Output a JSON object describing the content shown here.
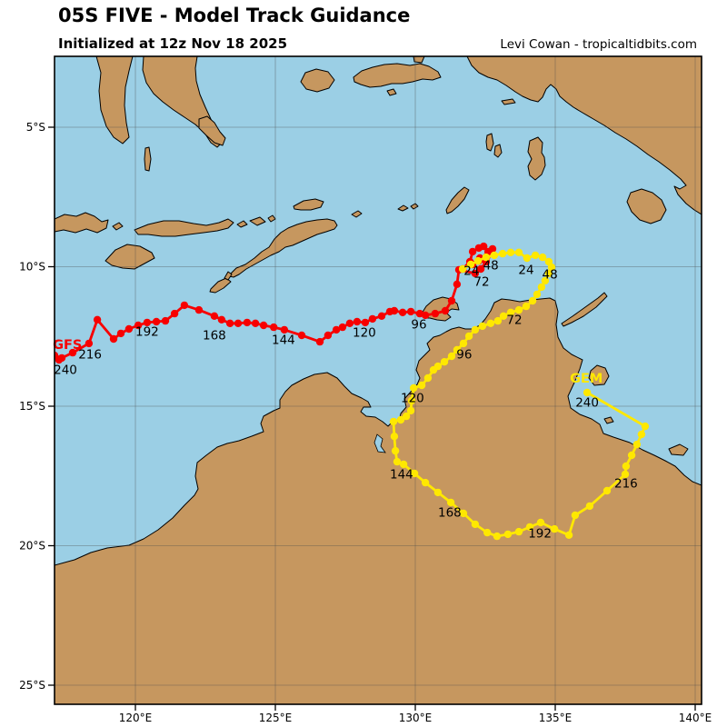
{
  "header": {
    "title": "05S FIVE - Model Track Guidance",
    "subtitle": "Initialized at 12z Nov 18 2025",
    "credit": "Levi Cowan - tropicaltidbits.com"
  },
  "map": {
    "colors": {
      "ocean": "#9BCFE5",
      "land": "#C6975F",
      "grid": "#4a4a4a",
      "frame": "#000000"
    },
    "lat_ticks": [
      {
        "label": "5°S",
        "lat": -5
      },
      {
        "label": "10°S",
        "lat": -10
      },
      {
        "label": "15°S",
        "lat": -15
      },
      {
        "label": "20°S",
        "lat": -20
      },
      {
        "label": "25°S",
        "lat": -25
      }
    ],
    "lon_ticks": [
      {
        "label": "120°E",
        "lon": 120
      },
      {
        "label": "125°E",
        "lon": 125
      },
      {
        "label": "130°E",
        "lon": 130
      },
      {
        "label": "135°E",
        "lon": 135
      },
      {
        "label": "140°E",
        "lon": 140
      }
    ]
  },
  "chart_data": {
    "type": "line",
    "title": "05S FIVE - Model Track Guidance",
    "subtitle": "Initialized at 12z Nov 18 2025",
    "x_axis": {
      "label_format": "degrees east",
      "range": [
        117.1,
        140.3
      ]
    },
    "y_axis": {
      "label_format": "degrees south",
      "range": [
        -25.7,
        -2.5
      ]
    },
    "projection": {
      "x0": 149,
      "lon0": 120,
      "sx": 30.8,
      "y0": 140,
      "lat0": -5,
      "sy": 30.7
    },
    "series": [
      {
        "name": "GFS",
        "color": "#F70000",
        "name_label_pos": [
          117.57,
          -12.78
        ],
        "points": [
          [
            131.69,
            -10.08
          ],
          [
            131.95,
            -9.82
          ],
          [
            132.05,
            -9.46
          ],
          [
            132.27,
            -9.33
          ],
          [
            132.44,
            -9.27
          ],
          [
            132.6,
            -9.46
          ],
          [
            132.76,
            -9.36
          ],
          [
            132.56,
            -9.63
          ],
          [
            132.31,
            -9.69
          ],
          [
            132.05,
            -9.92
          ],
          [
            132.27,
            -9.79
          ],
          [
            132.53,
            -9.82
          ],
          [
            132.34,
            -10.08
          ],
          [
            132.14,
            -10.24
          ],
          [
            131.56,
            -10.11
          ],
          [
            131.49,
            -10.63
          ],
          [
            131.3,
            -11.22
          ],
          [
            131.07,
            -11.58
          ],
          [
            130.71,
            -11.68
          ],
          [
            130.36,
            -11.74
          ],
          [
            130.16,
            -11.68
          ],
          [
            129.84,
            -11.61
          ],
          [
            129.55,
            -11.64
          ],
          [
            129.25,
            -11.58
          ],
          [
            129.09,
            -11.61
          ],
          [
            128.8,
            -11.77
          ],
          [
            128.47,
            -11.87
          ],
          [
            128.21,
            -12.0
          ],
          [
            127.92,
            -11.97
          ],
          [
            127.66,
            -12.03
          ],
          [
            127.4,
            -12.17
          ],
          [
            127.18,
            -12.26
          ],
          [
            126.88,
            -12.46
          ],
          [
            126.59,
            -12.69
          ],
          [
            125.94,
            -12.46
          ],
          [
            125.32,
            -12.26
          ],
          [
            124.94,
            -12.17
          ],
          [
            124.58,
            -12.1
          ],
          [
            124.29,
            -12.03
          ],
          [
            123.99,
            -12.0
          ],
          [
            123.67,
            -12.03
          ],
          [
            123.38,
            -12.03
          ],
          [
            123.08,
            -11.9
          ],
          [
            122.82,
            -11.77
          ],
          [
            122.27,
            -11.55
          ],
          [
            121.75,
            -11.38
          ],
          [
            121.4,
            -11.68
          ],
          [
            121.07,
            -11.94
          ],
          [
            120.75,
            -11.97
          ],
          [
            120.42,
            -12.0
          ],
          [
            120.1,
            -12.1
          ],
          [
            119.77,
            -12.23
          ],
          [
            119.48,
            -12.39
          ],
          [
            119.22,
            -12.59
          ],
          [
            118.64,
            -11.9
          ],
          [
            118.34,
            -12.75
          ],
          [
            117.76,
            -13.08
          ],
          [
            117.37,
            -13.27
          ],
          [
            117.11,
            -13.18
          ],
          [
            117.27,
            -13.34
          ]
        ],
        "hour_labels": [
          {
            "t": "24",
            "p": [
              132.01,
              -10.15
            ]
          },
          {
            "t": "48",
            "p": [
              132.7,
              -9.95
            ]
          },
          {
            "t": "72",
            "p": [
              132.37,
              -10.54
            ]
          },
          {
            "t": "96",
            "p": [
              130.13,
              -12.07
            ]
          },
          {
            "t": "120",
            "p": [
              128.18,
              -12.36
            ]
          },
          {
            "t": "144",
            "p": [
              125.29,
              -12.62
            ]
          },
          {
            "t": "168",
            "p": [
              122.82,
              -12.46
            ]
          },
          {
            "t": "192",
            "p": [
              120.42,
              -12.33
            ]
          },
          {
            "t": "216",
            "p": [
              118.38,
              -13.14
            ]
          },
          {
            "t": "240",
            "p": [
              117.5,
              -13.7
            ]
          }
        ]
      },
      {
        "name": "GEM",
        "color": "#FFE800",
        "name_label_pos": [
          136.11,
          -13.99
        ],
        "points": [
          [
            131.69,
            -10.08
          ],
          [
            131.98,
            -9.92
          ],
          [
            132.24,
            -9.79
          ],
          [
            132.53,
            -9.66
          ],
          [
            132.82,
            -9.59
          ],
          [
            133.12,
            -9.53
          ],
          [
            133.41,
            -9.49
          ],
          [
            133.7,
            -9.49
          ],
          [
            133.99,
            -9.69
          ],
          [
            134.29,
            -9.59
          ],
          [
            134.55,
            -9.66
          ],
          [
            134.77,
            -9.82
          ],
          [
            134.87,
            -10.02
          ],
          [
            134.77,
            -10.24
          ],
          [
            134.64,
            -10.5
          ],
          [
            134.51,
            -10.73
          ],
          [
            134.35,
            -10.99
          ],
          [
            134.19,
            -11.22
          ],
          [
            133.96,
            -11.42
          ],
          [
            133.7,
            -11.55
          ],
          [
            133.41,
            -11.64
          ],
          [
            133.15,
            -11.77
          ],
          [
            132.95,
            -11.94
          ],
          [
            132.69,
            -12.03
          ],
          [
            132.4,
            -12.13
          ],
          [
            132.14,
            -12.26
          ],
          [
            131.92,
            -12.49
          ],
          [
            131.72,
            -12.75
          ],
          [
            131.49,
            -12.98
          ],
          [
            131.3,
            -13.21
          ],
          [
            131.04,
            -13.41
          ],
          [
            130.81,
            -13.57
          ],
          [
            130.65,
            -13.7
          ],
          [
            130.45,
            -13.99
          ],
          [
            130.23,
            -14.25
          ],
          [
            129.94,
            -14.35
          ],
          [
            129.87,
            -14.8
          ],
          [
            129.84,
            -15.16
          ],
          [
            129.68,
            -15.36
          ],
          [
            129.48,
            -15.49
          ],
          [
            129.22,
            -15.55
          ],
          [
            129.25,
            -16.08
          ],
          [
            129.29,
            -16.6
          ],
          [
            129.35,
            -16.99
          ],
          [
            129.58,
            -17.08
          ],
          [
            129.97,
            -17.41
          ],
          [
            130.36,
            -17.74
          ],
          [
            130.81,
            -18.09
          ],
          [
            131.27,
            -18.45
          ],
          [
            131.72,
            -18.84
          ],
          [
            132.14,
            -19.23
          ],
          [
            132.57,
            -19.53
          ],
          [
            132.92,
            -19.66
          ],
          [
            133.31,
            -19.59
          ],
          [
            133.7,
            -19.5
          ],
          [
            134.09,
            -19.33
          ],
          [
            134.48,
            -19.17
          ],
          [
            134.97,
            -19.4
          ],
          [
            135.49,
            -19.62
          ],
          [
            135.71,
            -18.91
          ],
          [
            136.23,
            -18.58
          ],
          [
            136.85,
            -18.03
          ],
          [
            137.5,
            -17.44
          ],
          [
            137.53,
            -17.15
          ],
          [
            137.73,
            -16.76
          ],
          [
            137.92,
            -16.37
          ],
          [
            138.08,
            -16.01
          ],
          [
            138.21,
            -15.72
          ],
          [
            136.14,
            -14.51
          ]
        ],
        "hour_labels": [
          {
            "t": "24",
            "p": [
              133.96,
              -10.11
            ]
          },
          {
            "t": "48",
            "p": [
              134.81,
              -10.28
            ]
          },
          {
            "t": "72",
            "p": [
              133.54,
              -11.91
            ]
          },
          {
            "t": "96",
            "p": [
              131.75,
              -13.14
            ]
          },
          {
            "t": "120",
            "p": [
              129.9,
              -14.71
            ]
          },
          {
            "t": "144",
            "p": [
              129.51,
              -17.44
            ]
          },
          {
            "t": "168",
            "p": [
              131.23,
              -18.81
            ]
          },
          {
            "t": "192",
            "p": [
              134.45,
              -19.56
            ]
          },
          {
            "t": "216",
            "p": [
              137.53,
              -17.77
            ]
          },
          {
            "t": "240",
            "p": [
              136.14,
              -14.87
            ]
          }
        ]
      }
    ]
  }
}
